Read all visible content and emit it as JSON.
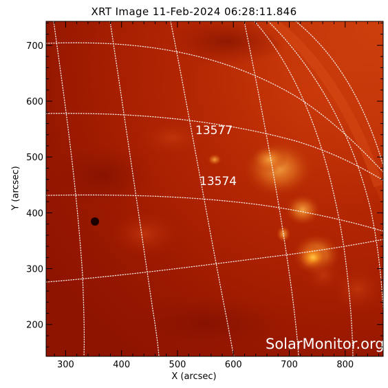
{
  "title": "XRT Image 11-Feb-2024 06:28:11.846",
  "xlabel": "X (arcsec)",
  "ylabel": "Y (arcsec)",
  "x_ticks": [
    "300",
    "400",
    "500",
    "600",
    "700",
    "800"
  ],
  "y_ticks": [
    "200",
    "300",
    "400",
    "500",
    "600",
    "700"
  ],
  "x_range": [
    265,
    868
  ],
  "y_range": [
    143,
    743
  ],
  "active_regions": [
    {
      "label": "13577",
      "x": 553,
      "y": 550
    },
    {
      "label": "13574",
      "x": 560,
      "y": 457
    }
  ],
  "watermark": "SolarMonitor.org",
  "colors": {
    "background": "#a81e00",
    "grid": "#ffffff",
    "axes": "#000000"
  }
}
